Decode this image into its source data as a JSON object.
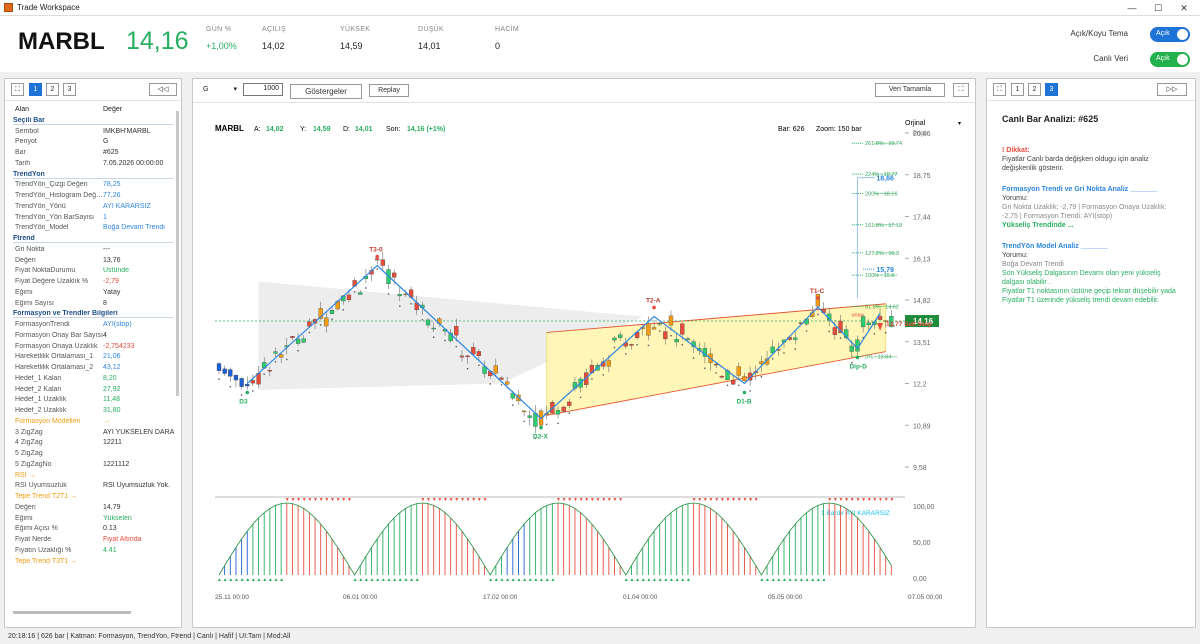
{
  "window": {
    "title": "Trade Workspace",
    "minimize": "—",
    "maximize": "☐",
    "close": "✕"
  },
  "header": {
    "symbol": "MARBL",
    "price": "14,16",
    "stats": [
      {
        "label": "GÜN %",
        "value": "+1,00%"
      },
      {
        "label": "AÇILIŞ",
        "value": "14,02"
      },
      {
        "label": "YÜKSEK",
        "value": "14,59"
      },
      {
        "label": "DÜŞÜK",
        "value": "14,01"
      },
      {
        "label": "HACİM",
        "value": "0"
      }
    ],
    "theme_toggle": {
      "label": "Açık/Koyu Tema",
      "state": "Açık"
    },
    "live_toggle": {
      "label": "Canlı Veri",
      "state": "Açık"
    },
    "colors": {
      "accent": "#1e73d6",
      "up": "#27ae60",
      "live_toggle": "#22b14c"
    }
  },
  "left_panel": {
    "toolbar": {
      "expand": "⛶",
      "pages": [
        "1",
        "2",
        "3"
      ],
      "active_page": "1",
      "collapse": "◁◁"
    },
    "header": {
      "key": "Alan",
      "value": "Değer"
    },
    "rows": [
      {
        "k": "Seçili Bar",
        "cat": true
      },
      {
        "k": "Sembol",
        "v": "IMKBH'MARBL"
      },
      {
        "k": "Periyot",
        "v": "G"
      },
      {
        "k": "Bar",
        "v": "#625"
      },
      {
        "k": "Tarih",
        "v": "7.05.2026 00:00:00"
      },
      {
        "k": "TrendYon",
        "cat": true
      },
      {
        "k": "TrendYön_Çizgi Değeri",
        "v": "78,25",
        "c": "blue"
      },
      {
        "k": "TrendYön_Histogram Değ…",
        "v": "77,26",
        "c": "blue"
      },
      {
        "k": "TrendYön_Yönü",
        "v": "AYI KARARSIZ",
        "c": "blue"
      },
      {
        "k": "TrendYön_Yön BarSayısı",
        "v": "1",
        "c": "blue"
      },
      {
        "k": "TrendYön_Model",
        "v": "Boğa Devam Trendi",
        "c": "blue"
      },
      {
        "k": "Ftrend",
        "cat": true
      },
      {
        "k": "Gri Nokta",
        "v": "---"
      },
      {
        "k": "Değeri",
        "v": "13,76"
      },
      {
        "k": "Fiyat NoktaDurumu",
        "v": "Üstünde",
        "c": "green"
      },
      {
        "k": "Fiyat Değere Uzaklık %",
        "v": "-2,79",
        "c": "red"
      },
      {
        "k": "Eğimi",
        "v": "Yatay"
      },
      {
        "k": "Eğimi Sayısı",
        "v": "8"
      },
      {
        "k": "Formasyon ve Trendler Bilgileri",
        "cat": true
      },
      {
        "k": "FormasyonTrendi",
        "v": "AYI(stop)",
        "c": "blue"
      },
      {
        "k": "Formasyon Onay Bar Sayısı",
        "v": "4"
      },
      {
        "k": "Formasyon Onaya Uzaklık",
        "v": "-2,754233",
        "c": "red"
      },
      {
        "k": "Hareketlilik Ortalaması_1",
        "v": "21,06",
        "c": "blue"
      },
      {
        "k": "Hareketlilik Ortalaması_2",
        "v": "43,12",
        "c": "blue"
      },
      {
        "k": "Hedef_1 Kalan",
        "v": "8,20",
        "c": "green"
      },
      {
        "k": "Hedef_2 Kalan",
        "v": "27,92",
        "c": "green"
      },
      {
        "k": "Hedef_1 Uzaklık",
        "v": "11,48",
        "c": "green"
      },
      {
        "k": "Hedef_2 Uzaklık",
        "v": "31,80",
        "c": "green"
      },
      {
        "k": "Formasyon Modelleri",
        "v": "→",
        "c": "orange",
        "o": true
      },
      {
        "k": "3 ZigZag",
        "v": "AYI YÜKSELEN DARALAN"
      },
      {
        "k": "4 ZigZag",
        "v": "12211"
      },
      {
        "k": "5 ZigZag",
        "v": ""
      },
      {
        "k": "5 ZigZagNo",
        "v": "1221112"
      },
      {
        "k": "RSI →",
        "v": "",
        "o": true
      },
      {
        "k": "RSI Uyumsuzluk",
        "v": "RSI Uyumsuzluk Yok."
      },
      {
        "k": "Tepe Trend T2T1 →",
        "v": "",
        "o": true
      },
      {
        "k": "Değeri",
        "v": "14,79"
      },
      {
        "k": "Eğimi",
        "v": "Yükselen",
        "c": "green"
      },
      {
        "k": "Eğimi Açısı %",
        "v": "0.13"
      },
      {
        "k": "Fiyat Nerde",
        "v": "Fiyat Altında",
        "c": "red"
      },
      {
        "k": "Fiyatın Uzaklığı %",
        "v": "4.41",
        "c": "green"
      },
      {
        "k": "Tepe Trend T3T1 →",
        "v": "",
        "o": true
      }
    ]
  },
  "center_panel": {
    "toolbar": {
      "period": "G",
      "bars": "1000",
      "indicators": "Göstergeler",
      "replay": "Replay",
      "fullscreen": "Veri Tamamla",
      "expand": "⛶"
    },
    "info": {
      "symbol": "MARBL",
      "a_label": "A:",
      "a": "14,02",
      "y_label": "Y:",
      "y": "14,59",
      "d_label": "D:",
      "d": "14,01",
      "son_label": "Son:",
      "son": "14,16 (+1%)",
      "bar": "Bar: 626",
      "zoom": "Zoom: 150 bar",
      "scale": "Orjinal",
      "axis_title": "Price"
    },
    "price_tag": "14,16",
    "sell_stop": "13,77 Sell Stop",
    "levels": [
      "18,66",
      "15,79"
    ],
    "fib": [
      "261.8% : 19.74",
      "224% : 18.77",
      "200% : 18.16",
      "161.8% : 17.18",
      "127.2% : 16.3",
      "100% : 15.6",
      "61.8% : 14.62",
      "0% : 13.04"
    ],
    "points": [
      "T3-0",
      "T2-A",
      "T1-C",
      "D3",
      "D2-X",
      "D1-B",
      "Dip-D",
      "onay"
    ],
    "osc_label": "1 Bardır AYI KARARSIZ"
  },
  "chart_data": {
    "type": "line",
    "title": "",
    "x_ticks": [
      "25.11 00:00",
      "06.01 00:00",
      "17.02 00:00",
      "01.04 00:00",
      "05.05 00:00",
      "07.05 00:00"
    ],
    "y_ticks": [
      "20,06",
      "18,75",
      "17,44",
      "16,13",
      "14,82",
      "13,51",
      "12,2",
      "10,89",
      "9,58"
    ],
    "osc_ticks": [
      "100,00",
      "50,00",
      "0,00"
    ],
    "ylim": [
      9.58,
      20.06
    ],
    "zigzag": [
      {
        "label": "D3",
        "bar": 5,
        "price": 12.2
      },
      {
        "label": "T3-0",
        "bar": 28,
        "price": 15.9
      },
      {
        "label": "D2-X",
        "bar": 57,
        "price": 11.1
      },
      {
        "label": "T2-A",
        "bar": 77,
        "price": 14.3
      },
      {
        "label": "D1-B",
        "bar": 93,
        "price": 12.2
      },
      {
        "label": "T1-C",
        "bar": 106,
        "price": 14.6
      },
      {
        "label": "Dip-D",
        "bar": 113,
        "price": 13.3
      }
    ]
  },
  "right_panel": {
    "toolbar": {
      "expand": "⛶",
      "pages": [
        "1",
        "2",
        "3"
      ],
      "active_page": "3",
      "collapse": "▷▷"
    },
    "title": "Canlı Bar Analizi: #625",
    "warning_head": "! Dikkat:",
    "warning_body": "Fiyatlar Canlı barda değişken oldugu için analiz değişkenlik gösterir.",
    "f_head": "Formasyon Trendi ve Gri Nokta Analiz _______",
    "f_sub": "Yorumu:",
    "f_body": "Gri Nokta Uzaklık: -2,79 | Formasyon Onaya Uzaklık: -2,75 | Formasyon Trendi: AYI(stop)",
    "f_concl": "Yükseliş Trendinde ...",
    "m_head": "TrendYön Model Analiz _______",
    "m_sub": "Yorumu:",
    "m_body": "Boğa Devam Trendi",
    "m_lines": [
      "Son Yükseliş Dalgasının Devamı olan yeni yükseliş dalgası olabilir .",
      "Fiyatlar T1 noktasının üstüne geçip tekrar düşebilir yada",
      "Fiyatlar T1 üzerinde yükseliş trendi devam edebilir."
    ]
  },
  "status_bar": "20:18:16 | 626 bar | Katman: Formasyon, TrendYon, Ftrend | Canlı | Hafif | UI:Tam | Mod:All"
}
